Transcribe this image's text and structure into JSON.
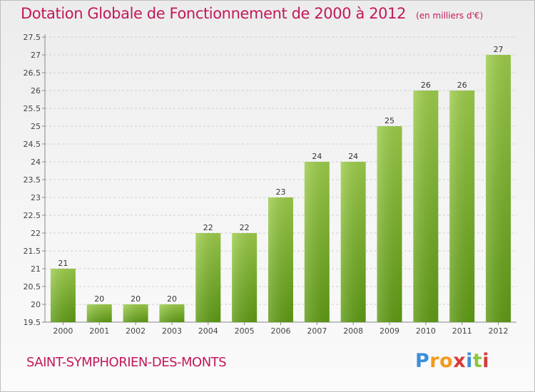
{
  "chart_data": {
    "type": "bar",
    "title": "Dotation Globale de Fonctionnement de 2000 à 2012",
    "subtitle": "(en milliers d'€)",
    "categories": [
      "2000",
      "2001",
      "2002",
      "2003",
      "2004",
      "2005",
      "2006",
      "2007",
      "2008",
      "2009",
      "2010",
      "2011",
      "2012"
    ],
    "values": [
      21,
      20,
      20,
      20,
      22,
      22,
      23,
      24,
      24,
      25,
      26,
      26,
      27
    ],
    "ylim": [
      19.5,
      27.5
    ],
    "yticks": [
      "19.5",
      "20",
      "20.5",
      "21",
      "21.5",
      "22",
      "22.5",
      "23",
      "23.5",
      "24",
      "24.5",
      "25",
      "25.5",
      "26",
      "26.5",
      "27",
      "27.5"
    ],
    "xlabel": "",
    "ylabel": "",
    "bar_color_top": "#9ccc4a",
    "bar_color_bottom": "#5e9a14"
  },
  "footer": {
    "town": "SAINT-SYMPHORIEN-DES-MONTS",
    "logo_letters": [
      "P",
      "r",
      "o",
      "x",
      "i",
      "t",
      "i"
    ],
    "logo_colors": [
      "#3b8fd8",
      "#f29a1d",
      "#f29a1d",
      "#d83a3a",
      "#3b8fd8",
      "#8cc63f",
      "#d83a3a"
    ]
  }
}
